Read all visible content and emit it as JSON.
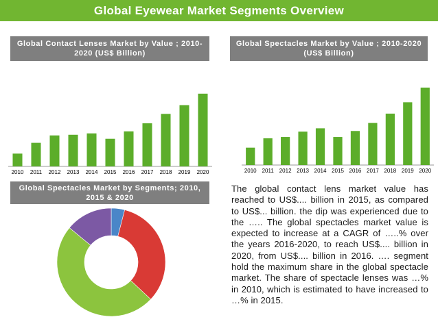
{
  "title": "Global Eyewear Market Segments Overview",
  "sections": {
    "contact_lenses_header": "Global Contact Lenses Market by Value ; 2010-2020 (US$ Billion)",
    "spectacles_header": "Global  Spectacles Market by Value ; 2010-2020 (US$ Billion)",
    "segments_header": "Global Spectacles Market by Segments; 2010, 2015 & 2020"
  },
  "paragraph": "The global contact lens market value has reached to US$.... billion in 2015, as compared to US$... billion. the dip was experienced due to the ….. The global spectacles market value is expected to increase at a CAGR of …..% over the years 2016-2020, to reach US$.... billion in 2020, from US$.... billion in 2016. …. segment hold the maximum share in the global spectacle market. The share of spectacle lenses was …% in 2010, which is estimated to have increased to …% in 2015.",
  "colors": {
    "accent_green": "#71b631",
    "header_gray": "#7f7f7f",
    "bar_green": "#5cad2a",
    "donut_blue": "#4a86c8",
    "donut_red": "#d93a35",
    "donut_green": "#8cc43e",
    "donut_purple": "#7c59a4"
  },
  "chart_data": [
    {
      "type": "bar",
      "categories": [
        "2010",
        "2011",
        "2012",
        "2013",
        "2014",
        "2015",
        "2016",
        "2017",
        "2018",
        "2019",
        "2020"
      ],
      "values": [
        19,
        35,
        46,
        47,
        49,
        41,
        52,
        64,
        78,
        91,
        108
      ],
      "title": "",
      "xlabel": "",
      "ylabel": "",
      "ylim": [
        0,
        120
      ],
      "grid": false
    },
    {
      "type": "bar",
      "categories": [
        "2010",
        "2011",
        "2012",
        "2013",
        "2014",
        "2015",
        "2016",
        "2017",
        "2018",
        "2019",
        "2020"
      ],
      "values": [
        26,
        40,
        42,
        50,
        55,
        42,
        51,
        63,
        77,
        94,
        116
      ],
      "title": "",
      "xlabel": "",
      "ylabel": "",
      "ylim": [
        0,
        120
      ],
      "grid": false
    },
    {
      "type": "pie",
      "donut": true,
      "values": [
        4,
        33,
        49,
        14
      ],
      "colors": [
        "#4a86c8",
        "#d93a35",
        "#8cc43e",
        "#7c59a4"
      ]
    }
  ]
}
